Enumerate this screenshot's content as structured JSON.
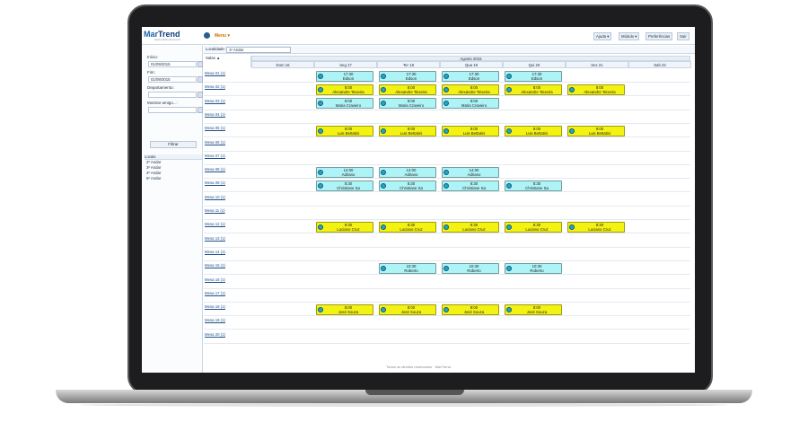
{
  "app": {
    "logo_main": "Mar",
    "logo_bold": "Trend",
    "logo_sub": "www.martrend.com.br",
    "menu_label": "Menu ▾"
  },
  "toolbar": {
    "help": "Ajuda ▾",
    "module": "Módulo ▾",
    "prefs": "Preferências",
    "exit": "Sair"
  },
  "sidebar": {
    "inicio_label": "Início:",
    "inicio_value": "01/09/2015",
    "fim_label": "Fim:",
    "fim_value": "01/09/2015",
    "dept_label": "Departamento:",
    "friend_label": "Mostrar amigo...:",
    "filter_button": "Filtrar",
    "locais_header": "Locais",
    "locais": [
      "2º Andar",
      "3º Andar",
      "4º Andar",
      "5º Andar"
    ]
  },
  "header": {
    "localidade_label": "Localidade:",
    "localidade_value": "1º Andar",
    "salas_label": "Salas ▲",
    "month": "Agosto 2015",
    "days": [
      "Dom 16",
      "Seg 17",
      "Ter 18",
      "Qua 19",
      "Qui 20",
      "Sex 21",
      "Sab 22"
    ]
  },
  "rows": [
    "Mesa 01 (1)",
    "Mesa 02 (1)",
    "Mesa 03 (1)",
    "Mesa 04 (1)",
    "Mesa 05 (1)",
    "Mesa 06 (1)",
    "Mesa 07 (1)",
    "Mesa 08 (1)",
    "Mesa 09 (1)",
    "Mesa 10 (1)",
    "Mesa 11 (1)",
    "Mesa 12 (1)",
    "Mesa 13 (1)",
    "Mesa 14 (1)",
    "Mesa 15 (1)",
    "Mesa 16 (1)",
    "Mesa 17 (1)",
    "Mesa 18 (1)",
    "Mesa 19 (1)",
    "Mesa 20 (1)"
  ],
  "events": [
    {
      "row": 0,
      "day": 1,
      "time": "17:30",
      "name": "Edson",
      "color": "cyan"
    },
    {
      "row": 0,
      "day": 2,
      "time": "17:30",
      "name": "Edson",
      "color": "cyan"
    },
    {
      "row": 0,
      "day": 3,
      "time": "17:30",
      "name": "Edson",
      "color": "cyan"
    },
    {
      "row": 0,
      "day": 4,
      "time": "17:30",
      "name": "Edson",
      "color": "cyan"
    },
    {
      "row": 1,
      "day": 1,
      "time": "8:00",
      "name": "Alexandre Teixeira",
      "color": "yellow"
    },
    {
      "row": 1,
      "day": 2,
      "time": "8:00",
      "name": "Alexandre Teixeira",
      "color": "yellow"
    },
    {
      "row": 1,
      "day": 3,
      "time": "8:00",
      "name": "Alexandre Teixeira",
      "color": "yellow"
    },
    {
      "row": 1,
      "day": 4,
      "time": "8:00",
      "name": "Alexandre Teixeira",
      "color": "yellow"
    },
    {
      "row": 1,
      "day": 5,
      "time": "8:00",
      "name": "Alexandre Teixeira",
      "color": "yellow"
    },
    {
      "row": 2,
      "day": 1,
      "time": "8:00",
      "name": "Maria Craveiro",
      "color": "cyan"
    },
    {
      "row": 2,
      "day": 2,
      "time": "8:00",
      "name": "Maria Craveiro",
      "color": "cyan"
    },
    {
      "row": 2,
      "day": 3,
      "time": "8:00",
      "name": "Maria Craveiro",
      "color": "cyan"
    },
    {
      "row": 4,
      "day": 1,
      "time": "9:00",
      "name": "Luis Bettatini",
      "color": "yellow"
    },
    {
      "row": 4,
      "day": 2,
      "time": "9:00",
      "name": "Luis Bettatini",
      "color": "yellow"
    },
    {
      "row": 4,
      "day": 3,
      "time": "9:00",
      "name": "Luis Bettatini",
      "color": "yellow"
    },
    {
      "row": 4,
      "day": 4,
      "time": "9:00",
      "name": "Luis Bettatini",
      "color": "yellow"
    },
    {
      "row": 4,
      "day": 5,
      "time": "9:00",
      "name": "Luis Bettatini",
      "color": "yellow"
    },
    {
      "row": 7,
      "day": 1,
      "time": "14:00",
      "name": "Adriano",
      "color": "cyan"
    },
    {
      "row": 7,
      "day": 2,
      "time": "14:00",
      "name": "Adriano",
      "color": "cyan"
    },
    {
      "row": 7,
      "day": 3,
      "time": "14:00",
      "name": "Adriano",
      "color": "cyan"
    },
    {
      "row": 8,
      "day": 1,
      "time": "8:30",
      "name": "Christiane Sa",
      "color": "cyan"
    },
    {
      "row": 8,
      "day": 2,
      "time": "8:30",
      "name": "Christiane Sa",
      "color": "cyan"
    },
    {
      "row": 8,
      "day": 3,
      "time": "8:30",
      "name": "Christiane Sa",
      "color": "cyan"
    },
    {
      "row": 8,
      "day": 4,
      "time": "8:30",
      "name": "Christiane Sa",
      "color": "cyan"
    },
    {
      "row": 11,
      "day": 1,
      "time": "8:30",
      "name": "Luciano Cruz",
      "color": "yellow"
    },
    {
      "row": 11,
      "day": 2,
      "time": "8:30",
      "name": "Luciano Cruz",
      "color": "yellow"
    },
    {
      "row": 11,
      "day": 3,
      "time": "8:30",
      "name": "Luciano Cruz",
      "color": "yellow"
    },
    {
      "row": 11,
      "day": 4,
      "time": "8:30",
      "name": "Luciano Cruz",
      "color": "yellow"
    },
    {
      "row": 11,
      "day": 5,
      "time": "8:30",
      "name": "Luciano Cruz",
      "color": "yellow"
    },
    {
      "row": 14,
      "day": 2,
      "time": "10:30",
      "name": "Roberto",
      "color": "cyan"
    },
    {
      "row": 14,
      "day": 3,
      "time": "10:30",
      "name": "Roberto",
      "color": "cyan"
    },
    {
      "row": 14,
      "day": 4,
      "time": "10:30",
      "name": "Roberto",
      "color": "cyan"
    },
    {
      "row": 17,
      "day": 1,
      "time": "8:00",
      "name": "José Souza",
      "color": "yellow"
    },
    {
      "row": 17,
      "day": 2,
      "time": "8:00",
      "name": "José Souza",
      "color": "yellow"
    },
    {
      "row": 17,
      "day": 3,
      "time": "8:00",
      "name": "José Souza",
      "color": "yellow"
    },
    {
      "row": 17,
      "day": 4,
      "time": "8:00",
      "name": "José Souza",
      "color": "yellow"
    }
  ],
  "footer": "Todos os direitos reservados · MarTrend"
}
